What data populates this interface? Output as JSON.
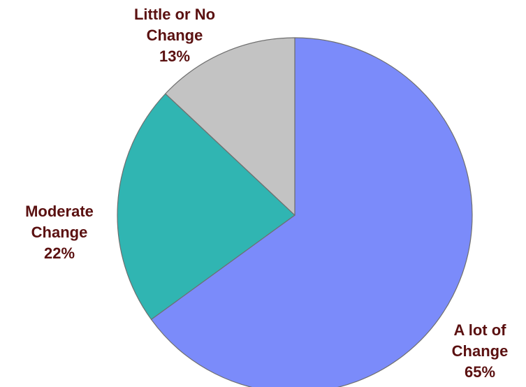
{
  "chart_data": {
    "type": "pie",
    "title": "",
    "slices": [
      {
        "label_lines": [
          "A lot of",
          "Change"
        ],
        "value": 65,
        "percent_label": "65%",
        "color": "#7b8bfa"
      },
      {
        "label_lines": [
          "Moderate",
          "Change"
        ],
        "value": 22,
        "percent_label": "22%",
        "color": "#30b5b2"
      },
      {
        "label_lines": [
          "Little or No",
          "Change"
        ],
        "value": 13,
        "percent_label": "13%",
        "color": "#c3c3c3"
      }
    ],
    "label_color": "#5a1010",
    "start_angle_deg": 0,
    "direction": "clockwise",
    "legend": "none"
  }
}
